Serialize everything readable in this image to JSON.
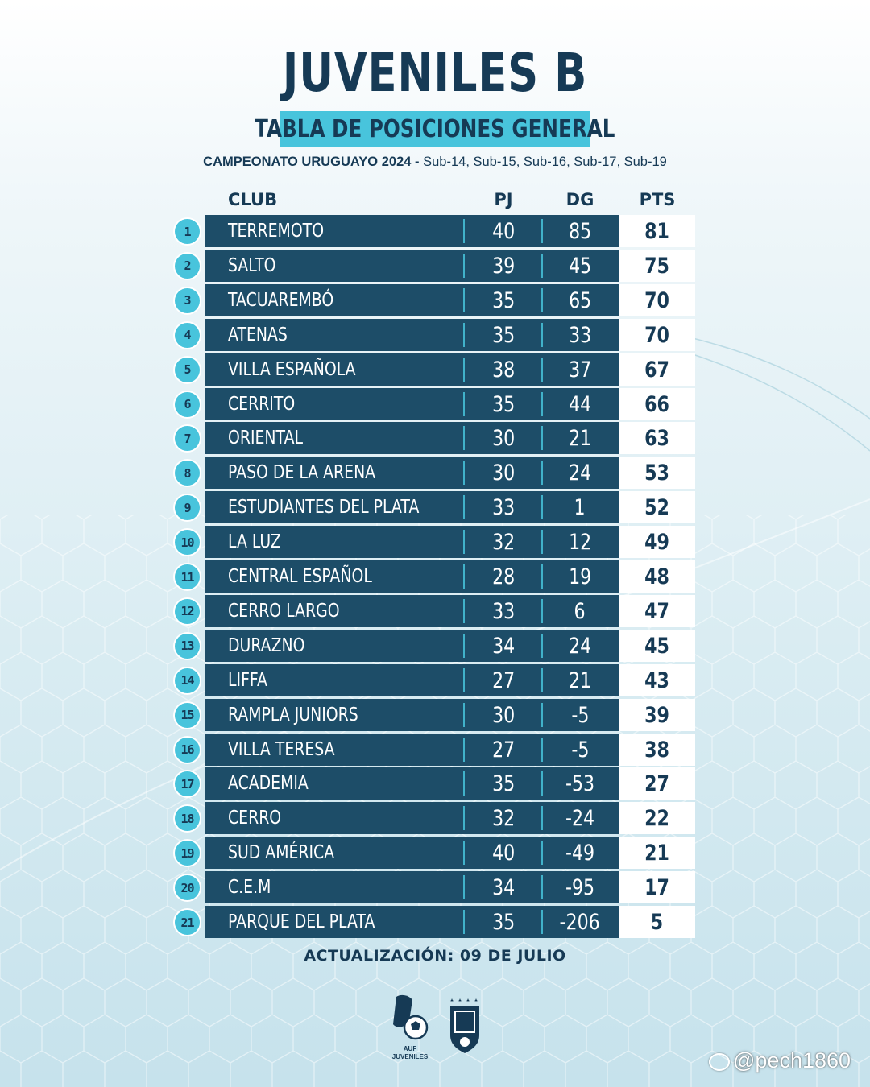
{
  "title": "JUVENILES B",
  "subtitle": "TABLA DE POSICIONES GENERAL",
  "campeonato": {
    "bold": "CAMPEONATO URUGUAYO 2024 -",
    "rest": "Sub-14, Sub-15, Sub-16, Sub-17, Sub-19"
  },
  "headers": {
    "club": "CLUB",
    "pj": "PJ",
    "dg": "DG",
    "pts": "PTS"
  },
  "rows": [
    {
      "pos": "1",
      "club": "TERREMOTO",
      "pj": "40",
      "dg": "85",
      "pts": "81"
    },
    {
      "pos": "2",
      "club": "SALTO",
      "pj": "39",
      "dg": "45",
      "pts": "75"
    },
    {
      "pos": "3",
      "club": "TACUAREMBÓ",
      "pj": "35",
      "dg": "65",
      "pts": "70"
    },
    {
      "pos": "4",
      "club": "ATENAS",
      "pj": "35",
      "dg": "33",
      "pts": "70"
    },
    {
      "pos": "5",
      "club": "VILLA ESPAÑOLA",
      "pj": "38",
      "dg": "37",
      "pts": "67"
    },
    {
      "pos": "6",
      "club": "CERRITO",
      "pj": "35",
      "dg": "44",
      "pts": "66"
    },
    {
      "pos": "7",
      "club": "ORIENTAL",
      "pj": "30",
      "dg": "21",
      "pts": "63"
    },
    {
      "pos": "8",
      "club": "PASO DE LA ARENA",
      "pj": "30",
      "dg": "24",
      "pts": "53"
    },
    {
      "pos": "9",
      "club": "ESTUDIANTES DEL PLATA",
      "pj": "33",
      "dg": "1",
      "pts": "52"
    },
    {
      "pos": "10",
      "club": "LA LUZ",
      "pj": "32",
      "dg": "12",
      "pts": "49"
    },
    {
      "pos": "11",
      "club": "CENTRAL ESPAÑOL",
      "pj": "28",
      "dg": "19",
      "pts": "48"
    },
    {
      "pos": "12",
      "club": "CERRO LARGO",
      "pj": "33",
      "dg": "6",
      "pts": "47"
    },
    {
      "pos": "13",
      "club": "DURAZNO",
      "pj": "34",
      "dg": "24",
      "pts": "45"
    },
    {
      "pos": "14",
      "club": "LIFFA",
      "pj": "27",
      "dg": "21",
      "pts": "43"
    },
    {
      "pos": "15",
      "club": "RAMPLA JUNIORS",
      "pj": "30",
      "dg": "-5",
      "pts": "39"
    },
    {
      "pos": "16",
      "club": "VILLA TERESA",
      "pj": "27",
      "dg": "-5",
      "pts": "38"
    },
    {
      "pos": "17",
      "club": "ACADEMIA",
      "pj": "35",
      "dg": "-53",
      "pts": "27"
    },
    {
      "pos": "18",
      "club": "CERRO",
      "pj": "32",
      "dg": "-24",
      "pts": "22"
    },
    {
      "pos": "19",
      "club": "SUD AMÉRICA",
      "pj": "40",
      "dg": "-49",
      "pts": "21"
    },
    {
      "pos": "20",
      "club": "C.E.M",
      "pj": "34",
      "dg": "-95",
      "pts": "17"
    },
    {
      "pos": "21",
      "club": "PARQUE DEL PLATA",
      "pj": "35",
      "dg": "-206",
      "pts": "5"
    }
  ],
  "update": "ACTUALIZACIÓN: 09 DE JULIO",
  "logo_juveniles": {
    "line1": "AUF",
    "line2": "JUVENILES"
  },
  "watermark": "@pech1860",
  "colors": {
    "navy": "#1d4d68",
    "cyan": "#48c4dc",
    "title": "#163a55"
  }
}
